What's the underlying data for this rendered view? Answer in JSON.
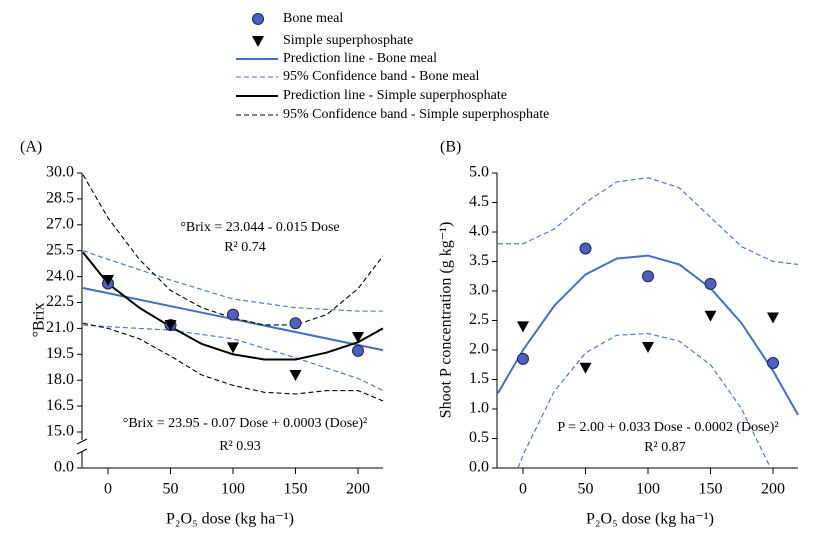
{
  "chart_data": [
    {
      "type": "scatter",
      "panel_label": "(A)",
      "xlabel": "P₂O₅ dose (kg ha⁻¹)",
      "ylabel": "°Brix",
      "annotations": [
        "°Brix = 23.044 - 0.015 Dose",
        "R² 0.74",
        "°Brix = 23.95 - 0.07 Dose + 0.0003 (Dose)²",
        "R² 0.93"
      ],
      "xlim": [
        -20,
        220
      ],
      "xticks": [
        0,
        50,
        100,
        150,
        200
      ],
      "ylim": [
        0,
        30
      ],
      "ybreak": [
        0,
        15
      ],
      "yticks": [
        {
          "value": 30,
          "label": "30.0"
        },
        {
          "value": 28.5,
          "label": "28.5"
        },
        {
          "value": 27,
          "label": "27.0"
        },
        {
          "value": 25.5,
          "label": "25.5"
        },
        {
          "value": 24,
          "label": "24.0"
        },
        {
          "value": 22.5,
          "label": "22.5"
        },
        {
          "value": 21,
          "label": "21.0"
        },
        {
          "value": 19.5,
          "label": "19.5"
        },
        {
          "value": 18,
          "label": "18.0"
        },
        {
          "value": 16.5,
          "label": "16.5"
        },
        {
          "value": 15,
          "label": "15.0"
        },
        {
          "value": 0,
          "label": "0.0"
        }
      ],
      "legend": "top",
      "series": [
        {
          "name": "Bone meal",
          "kind": "points",
          "marker": "circle",
          "color": "#4f5fc0",
          "x": [
            0,
            50,
            100,
            150,
            200
          ],
          "values": [
            23.6,
            21.2,
            21.8,
            21.3,
            19.7
          ]
        },
        {
          "name": "Simple superphosphate",
          "kind": "points",
          "marker": "triangle",
          "color": "#000000",
          "x": [
            0,
            50,
            100,
            150,
            200
          ],
          "values": [
            23.8,
            21.2,
            19.9,
            18.3,
            20.5
          ]
        },
        {
          "name": "Prediction line - Bone meal",
          "kind": "line",
          "dashed": false,
          "color": "#4470c4",
          "x": [
            -20,
            220
          ],
          "values": [
            23.34,
            19.74
          ]
        },
        {
          "name": "95% Confidence band - Bone meal",
          "kind": "line",
          "dashed": true,
          "color": "#4470c4",
          "x": [
            -20,
            0,
            50,
            100,
            150,
            200,
            220,
            null,
            -20,
            0,
            50,
            100,
            150,
            200,
            220
          ],
          "values": [
            25.5,
            25.0,
            23.8,
            22.7,
            22.2,
            22.0,
            22.0,
            null,
            21.2,
            21.1,
            20.9,
            20.4,
            19.3,
            18.1,
            17.4
          ]
        },
        {
          "name": "Prediction line - Simple superphosphate",
          "kind": "line",
          "dashed": false,
          "color": "#000000",
          "x": [
            -20,
            0,
            25,
            50,
            75,
            100,
            125,
            150,
            175,
            200,
            220
          ],
          "values": [
            25.4,
            23.6,
            22.2,
            21.1,
            20.1,
            19.5,
            19.2,
            19.2,
            19.6,
            20.2,
            21.0
          ]
        },
        {
          "name": "95% Confidence band - Simple superphosphate",
          "kind": "line",
          "dashed": true,
          "color": "#000000",
          "x": [
            -20,
            0,
            25,
            50,
            75,
            100,
            125,
            150,
            175,
            200,
            220,
            null,
            -20,
            0,
            25,
            50,
            75,
            100,
            125,
            150,
            175,
            200,
            220
          ],
          "values": [
            29.9,
            27.4,
            25.0,
            23.2,
            22.2,
            21.6,
            21.2,
            21.2,
            21.8,
            23.3,
            25.2,
            null,
            21.3,
            21.0,
            20.4,
            19.4,
            18.3,
            17.7,
            17.3,
            17.2,
            17.4,
            17.4,
            16.8
          ]
        }
      ]
    },
    {
      "type": "scatter",
      "panel_label": "(B)",
      "xlabel": "P₂O₅ dose (kg ha⁻¹)",
      "ylabel": "Shoot P concentration (g kg⁻¹)",
      "annotations": [
        "P = 2.00 + 0.033 Dose - 0.0002 (Dose)²",
        "R² 0.87"
      ],
      "xlim": [
        -20,
        220
      ],
      "xticks": [
        0,
        50,
        100,
        150,
        200
      ],
      "ylim": [
        0,
        5
      ],
      "yticks": [
        {
          "value": 0,
          "label": "0.0"
        },
        {
          "value": 0.5,
          "label": "0.5"
        },
        {
          "value": 1,
          "label": "1.0"
        },
        {
          "value": 1.5,
          "label": "1.5"
        },
        {
          "value": 2,
          "label": "2.0"
        },
        {
          "value": 2.5,
          "label": "2.5"
        },
        {
          "value": 3,
          "label": "3.0"
        },
        {
          "value": 3.5,
          "label": "3.5"
        },
        {
          "value": 4,
          "label": "4.0"
        },
        {
          "value": 4.5,
          "label": "4.5"
        },
        {
          "value": 5,
          "label": "5.0"
        }
      ],
      "series": [
        {
          "kind": "points",
          "marker": "circle",
          "color": "#4f5fc0",
          "x": [
            0,
            50,
            100,
            150,
            200
          ],
          "values": [
            1.85,
            3.72,
            3.25,
            3.12,
            1.78
          ]
        },
        {
          "kind": "points",
          "marker": "triangle",
          "color": "#000000",
          "x": [
            0,
            50,
            100,
            150,
            200
          ],
          "values": [
            2.4,
            1.7,
            2.05,
            2.58,
            2.55
          ]
        },
        {
          "kind": "line",
          "dashed": false,
          "color": "#4470c4",
          "x": [
            -20,
            0,
            25,
            50,
            75,
            100,
            125,
            150,
            175,
            200,
            220
          ],
          "values": [
            1.27,
            2.0,
            2.75,
            3.28,
            3.55,
            3.6,
            3.45,
            3.05,
            2.45,
            1.65,
            0.9
          ]
        },
        {
          "kind": "line",
          "dashed": true,
          "color": "#4470c4",
          "x": [
            -20,
            0,
            25,
            50,
            75,
            100,
            125,
            150,
            175,
            200,
            220,
            null,
            -4,
            0,
            25,
            50,
            75,
            100,
            125,
            150,
            175,
            198
          ],
          "values": [
            3.8,
            3.8,
            4.05,
            4.5,
            4.85,
            4.92,
            4.75,
            4.25,
            3.75,
            3.5,
            3.45,
            null,
            0,
            0.22,
            1.3,
            1.95,
            2.25,
            2.28,
            2.15,
            1.75,
            1.0,
            0
          ]
        }
      ]
    }
  ]
}
